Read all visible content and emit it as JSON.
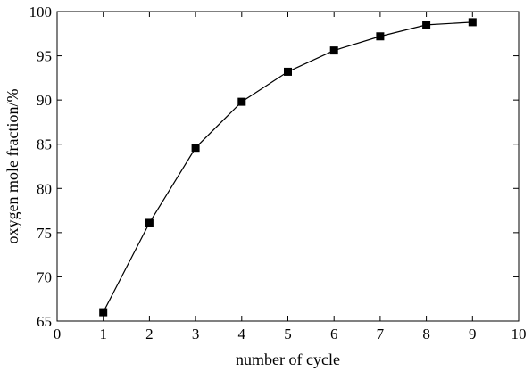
{
  "chart_data": {
    "type": "line",
    "title": "",
    "xlabel": "number of cycle",
    "ylabel": "oxygen mole fraction/%",
    "xlim": [
      0,
      10
    ],
    "ylim": [
      65,
      100
    ],
    "xticks": [
      "0",
      "1",
      "2",
      "3",
      "4",
      "5",
      "6",
      "7",
      "8",
      "9",
      "10"
    ],
    "yticks": [
      "65",
      "70",
      "75",
      "80",
      "85",
      "90",
      "95",
      "100"
    ],
    "grid": false,
    "legend": "none",
    "marker": "square",
    "line_color": "#000000",
    "series": [
      {
        "x": [
          1,
          2,
          3,
          4,
          5,
          6,
          7,
          8,
          9
        ],
        "y": [
          66.0,
          76.1,
          84.6,
          89.8,
          93.2,
          95.6,
          97.2,
          98.5,
          98.8
        ]
      }
    ]
  }
}
